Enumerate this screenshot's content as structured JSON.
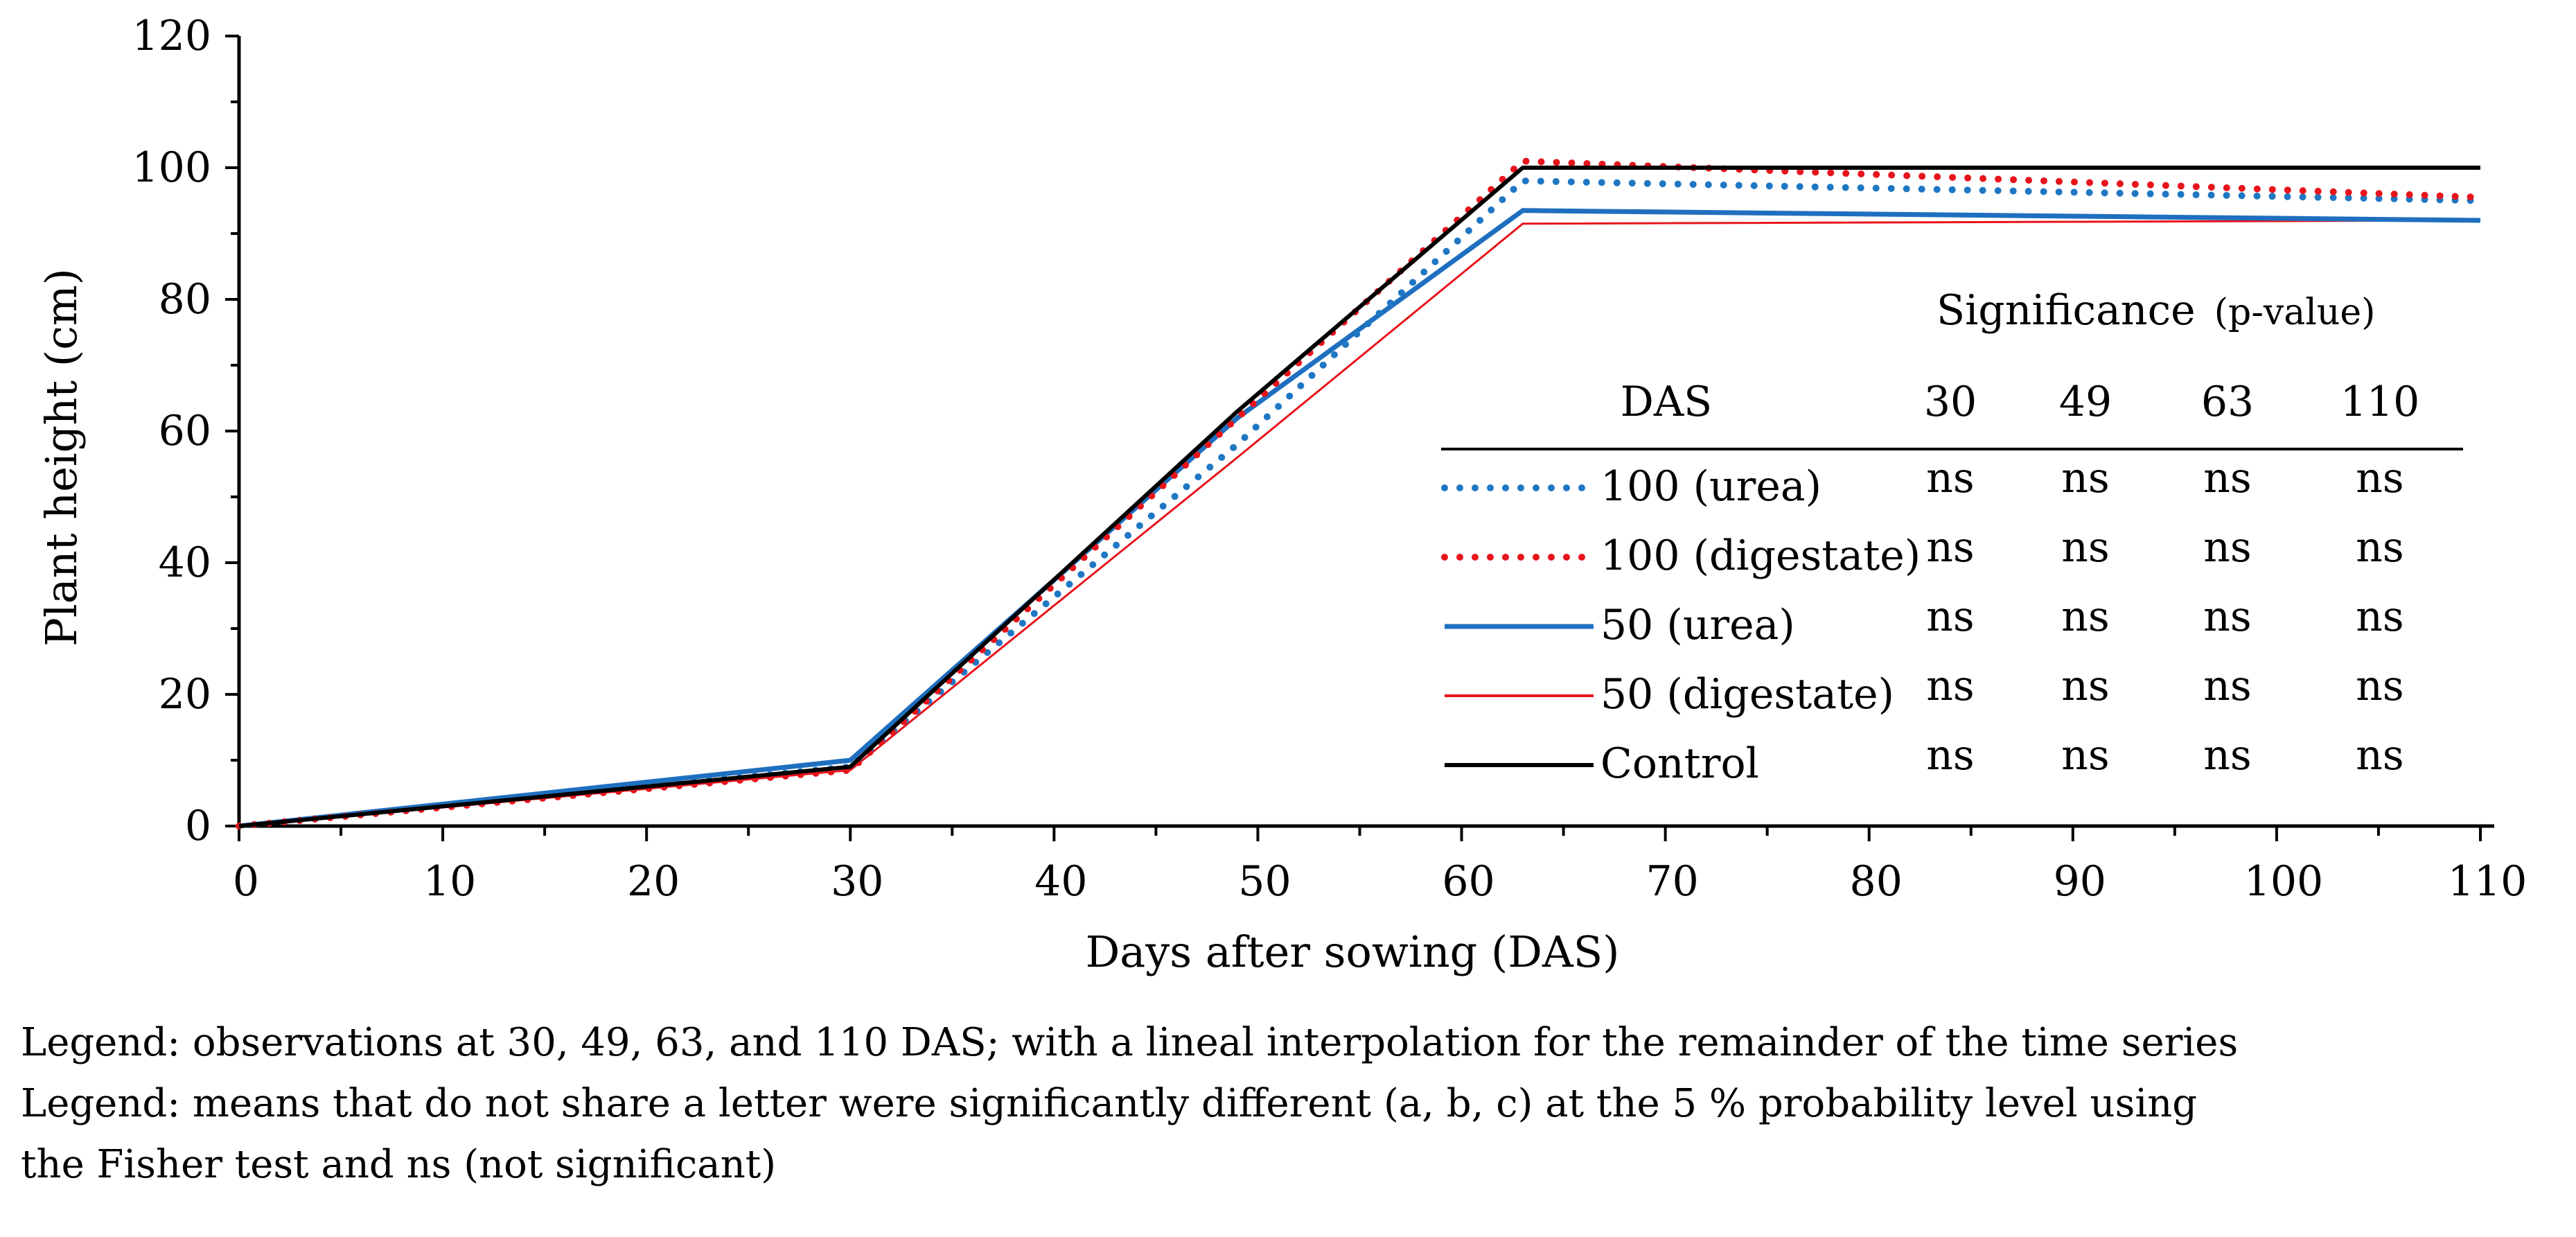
{
  "chart_data": {
    "type": "line",
    "xlabel": "Days after sowing (DAS)",
    "ylabel": "Plant height (cm)",
    "xlim": [
      0,
      110
    ],
    "ylim": [
      0,
      120
    ],
    "x_ticks": [
      0,
      10,
      20,
      30,
      40,
      50,
      60,
      70,
      80,
      90,
      100,
      110
    ],
    "y_ticks": [
      0,
      20,
      40,
      60,
      80,
      100,
      120
    ],
    "grid": false,
    "series": [
      {
        "name": "100 (urea)",
        "color": "#1f77c4",
        "style": "dotted",
        "points": [
          [
            0,
            0
          ],
          [
            30,
            9
          ],
          [
            49,
            58
          ],
          [
            63,
            98
          ],
          [
            110,
            95
          ]
        ]
      },
      {
        "name": "100 (digestate)",
        "color": "#e8141c",
        "style": "dotted",
        "points": [
          [
            0,
            0
          ],
          [
            30,
            8.5
          ],
          [
            49,
            62
          ],
          [
            63,
            101
          ],
          [
            110,
            95.5
          ]
        ]
      },
      {
        "name": "50 (urea)",
        "color": "#1f6fc0",
        "style": "solid-thick",
        "points": [
          [
            0,
            0
          ],
          [
            30,
            10
          ],
          [
            49,
            62
          ],
          [
            63,
            93.5
          ],
          [
            110,
            92
          ]
        ]
      },
      {
        "name": "50 (digestate)",
        "color": "#e8141c",
        "style": "solid-thin",
        "points": [
          [
            0,
            0
          ],
          [
            30,
            8.5
          ],
          [
            49,
            56
          ],
          [
            63,
            91.5
          ],
          [
            110,
            92
          ]
        ]
      },
      {
        "name": "Control",
        "color": "#000000",
        "style": "solid",
        "points": [
          [
            0,
            0
          ],
          [
            30,
            9
          ],
          [
            49,
            63
          ],
          [
            63,
            100
          ],
          [
            110,
            100
          ]
        ]
      }
    ],
    "significance_table": {
      "title": "Significance",
      "title_suffix": "(p-value)",
      "header_label": "DAS",
      "columns": [
        "30",
        "49",
        "63",
        "110"
      ],
      "rows": [
        [
          "ns",
          "ns",
          "ns",
          "ns"
        ],
        [
          "ns",
          "ns",
          "ns",
          "ns"
        ],
        [
          "ns",
          "ns",
          "ns",
          "ns"
        ],
        [
          "ns",
          "ns",
          "ns",
          "ns"
        ],
        [
          "ns",
          "ns",
          "ns",
          "ns"
        ]
      ]
    }
  },
  "captions": {
    "line1": "Legend: observations at 30, 49, 63, and 110 DAS; with a lineal interpolation for the remainder of the time series",
    "line2": "Legend: means that do not share a letter were significantly different (a, b, c) at the 5 % probability level using",
    "line3": "the Fisher test and ns (not significant)"
  }
}
